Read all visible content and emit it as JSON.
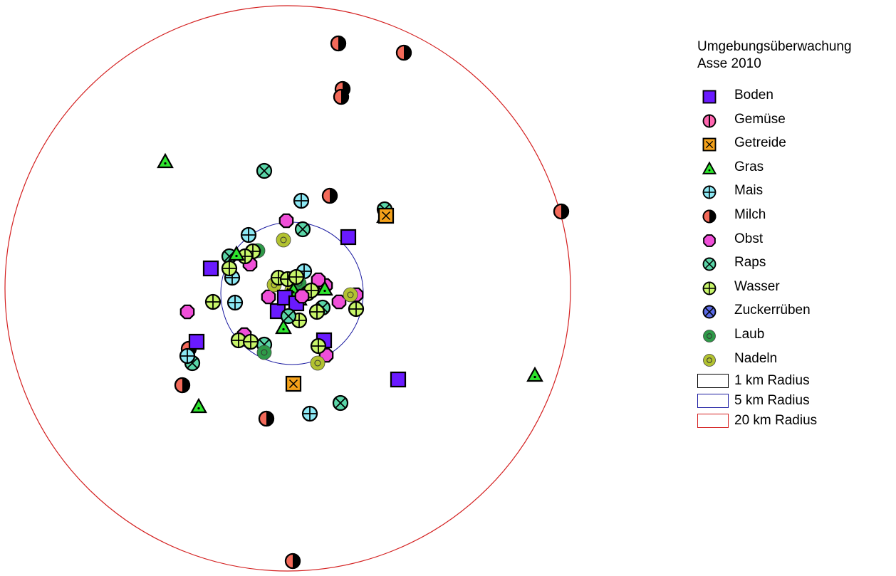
{
  "legend": {
    "title_line1": "Umgebungsüberwachung",
    "title_line2": "Asse 2010",
    "items": [
      {
        "key": "boden",
        "label": "Boden"
      },
      {
        "key": "gemuese",
        "label": "Gemüse"
      },
      {
        "key": "getreide",
        "label": "Getreide"
      },
      {
        "key": "gras",
        "label": "Gras"
      },
      {
        "key": "mais",
        "label": "Mais"
      },
      {
        "key": "milch",
        "label": "Milch"
      },
      {
        "key": "obst",
        "label": "Obst"
      },
      {
        "key": "raps",
        "label": "Raps"
      },
      {
        "key": "wasser",
        "label": "Wasser"
      },
      {
        "key": "zuckerrueben",
        "label": "Zuckerrüben"
      },
      {
        "key": "laub",
        "label": "Laub"
      },
      {
        "key": "nadeln",
        "label": "Nadeln"
      }
    ],
    "radii": [
      {
        "label": "1 km Radius",
        "color": "#000000"
      },
      {
        "label": "5 km Radius",
        "color": "#1a1aa0"
      },
      {
        "label": "20 km Radius",
        "color": "#d42020"
      }
    ]
  },
  "colors": {
    "boden": "#6a1aff",
    "gemuese": "#ff66b0",
    "getreide": "#f4a11a",
    "gras": "#2ee62e",
    "mais": "#8ce8f4",
    "milch": "#f36a5a",
    "obst": "#ef4fd8",
    "raps": "#5ad6a8",
    "wasser": "#c8f56a",
    "zuckerrueben": "#5a6ae6",
    "laub": "#2e9a48",
    "nadeln": "#b2c230",
    "circle_20km": "#d42020",
    "circle_5km": "#1a1aa0"
  }
}
